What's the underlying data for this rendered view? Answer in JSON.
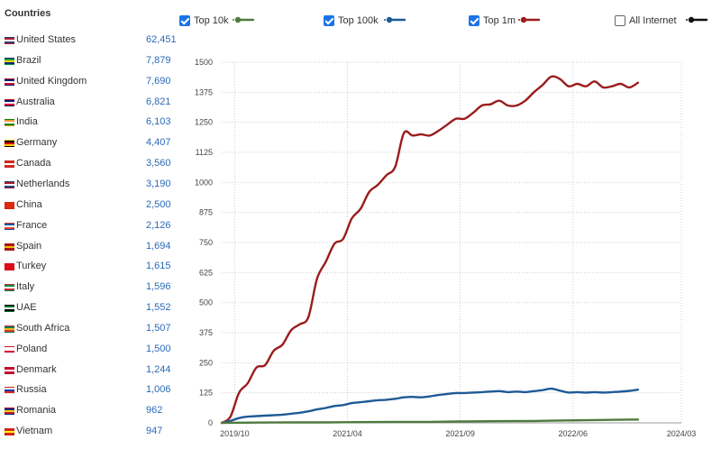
{
  "countries": {
    "heading": "Countries",
    "items": [
      {
        "name": "United States",
        "value": "62,451",
        "flag": "us-flag-icon",
        "colors": [
          "#b22234",
          "#ffffff",
          "#3c3b6e"
        ]
      },
      {
        "name": "Brazil",
        "value": "7,879",
        "flag": "brazil-flag-icon",
        "colors": [
          "#009c3b",
          "#ffdf00",
          "#002776"
        ]
      },
      {
        "name": "United Kingdom",
        "value": "7,690",
        "flag": "uk-flag-icon",
        "colors": [
          "#012169",
          "#ffffff",
          "#c8102e"
        ]
      },
      {
        "name": "Australia",
        "value": "6,821",
        "flag": "australia-flag-icon",
        "colors": [
          "#012169",
          "#ffffff",
          "#e4002b"
        ]
      },
      {
        "name": "India",
        "value": "6,103",
        "flag": "india-flag-icon",
        "colors": [
          "#ff9933",
          "#ffffff",
          "#138808"
        ]
      },
      {
        "name": "Germany",
        "value": "4,407",
        "flag": "germany-flag-icon",
        "colors": [
          "#000000",
          "#dd0000",
          "#ffce00"
        ]
      },
      {
        "name": "Canada",
        "value": "3,560",
        "flag": "canada-flag-icon",
        "colors": [
          "#d52b1e",
          "#ffffff",
          "#d52b1e"
        ]
      },
      {
        "name": "Netherlands",
        "value": "3,190",
        "flag": "netherlands-flag-icon",
        "colors": [
          "#ae1c28",
          "#ffffff",
          "#21468b"
        ]
      },
      {
        "name": "China",
        "value": "2,500",
        "flag": "china-flag-icon",
        "colors": [
          "#de2910",
          "#de2910",
          "#de2910"
        ]
      },
      {
        "name": "France",
        "value": "2,126",
        "flag": "france-flag-icon",
        "colors": [
          "#0055a4",
          "#ffffff",
          "#ef4135"
        ]
      },
      {
        "name": "Spain",
        "value": "1,694",
        "flag": "spain-flag-icon",
        "colors": [
          "#aa151b",
          "#f1bf00",
          "#aa151b"
        ]
      },
      {
        "name": "Turkey",
        "value": "1,615",
        "flag": "turkey-flag-icon",
        "colors": [
          "#e30a17",
          "#e30a17",
          "#e30a17"
        ]
      },
      {
        "name": "Italy",
        "value": "1,596",
        "flag": "italy-flag-icon",
        "colors": [
          "#009246",
          "#ffffff",
          "#ce2b37"
        ]
      },
      {
        "name": "UAE",
        "value": "1,552",
        "flag": "uae-flag-icon",
        "colors": [
          "#00732f",
          "#ffffff",
          "#000000"
        ]
      },
      {
        "name": "South Africa",
        "value": "1,507",
        "flag": "south-africa-flag-icon",
        "colors": [
          "#007a4d",
          "#ffb612",
          "#de3831"
        ]
      },
      {
        "name": "Poland",
        "value": "1,500",
        "flag": "poland-flag-icon",
        "colors": [
          "#ffffff",
          "#ffffff",
          "#dc143c"
        ]
      },
      {
        "name": "Denmark",
        "value": "1,244",
        "flag": "denmark-flag-icon",
        "colors": [
          "#c8102e",
          "#ffffff",
          "#c8102e"
        ]
      },
      {
        "name": "Russia",
        "value": "1,006",
        "flag": "russia-flag-icon",
        "colors": [
          "#ffffff",
          "#0039a6",
          "#d52b1e"
        ]
      },
      {
        "name": "Romania",
        "value": "962",
        "flag": "romania-flag-icon",
        "colors": [
          "#002b7f",
          "#fcd116",
          "#ce1126"
        ]
      },
      {
        "name": "Vietnam",
        "value": "947",
        "flag": "vietnam-flag-icon",
        "colors": [
          "#da251d",
          "#ffff00",
          "#da251d"
        ]
      }
    ]
  },
  "legend": [
    {
      "label": "Top 10k",
      "checked": true,
      "color": "#4e7a3e"
    },
    {
      "label": "Top 100k",
      "checked": true,
      "color": "#1f5a96"
    },
    {
      "label": "Top 1m",
      "checked": true,
      "color": "#9b1c1c"
    },
    {
      "label": "All Internet",
      "checked": false,
      "color": "#111111"
    }
  ],
  "chart_data": {
    "type": "line",
    "title": "",
    "xlabel": "",
    "ylabel": "",
    "ylim": [
      0,
      1500
    ],
    "xlim": [
      0,
      53
    ],
    "y_ticks": [
      0,
      125,
      250,
      375,
      500,
      625,
      750,
      875,
      1000,
      1125,
      1250,
      1375,
      1500
    ],
    "x_ticks": [
      {
        "label": "2019/10",
        "x": 1.5
      },
      {
        "label": "2021/04",
        "x": 14.5
      },
      {
        "label": "2021/09",
        "x": 27.5
      },
      {
        "label": "2022/06",
        "x": 40.5
      },
      {
        "label": "2024/03",
        "x": 53
      }
    ],
    "grid": true,
    "series": [
      {
        "name": "Top 1m",
        "color": "#9b1c1c",
        "points": [
          [
            0,
            0
          ],
          [
            1,
            25
          ],
          [
            2,
            125
          ],
          [
            3,
            165
          ],
          [
            4,
            230
          ],
          [
            5,
            240
          ],
          [
            6,
            300
          ],
          [
            7,
            325
          ],
          [
            8,
            385
          ],
          [
            9,
            410
          ],
          [
            10,
            440
          ],
          [
            11,
            600
          ],
          [
            12,
            670
          ],
          [
            13,
            745
          ],
          [
            14,
            765
          ],
          [
            15,
            850
          ],
          [
            16,
            890
          ],
          [
            17,
            960
          ],
          [
            18,
            990
          ],
          [
            19,
            1030
          ],
          [
            20,
            1065
          ],
          [
            21,
            1205
          ],
          [
            22,
            1195
          ],
          [
            23,
            1200
          ],
          [
            24,
            1195
          ],
          [
            25,
            1215
          ],
          [
            26,
            1240
          ],
          [
            27,
            1265
          ],
          [
            28,
            1265
          ],
          [
            29,
            1290
          ],
          [
            30,
            1320
          ],
          [
            31,
            1325
          ],
          [
            32,
            1340
          ],
          [
            33,
            1320
          ],
          [
            34,
            1320
          ],
          [
            35,
            1340
          ],
          [
            36,
            1375
          ],
          [
            37,
            1405
          ],
          [
            38,
            1440
          ],
          [
            39,
            1430
          ],
          [
            40,
            1400
          ],
          [
            41,
            1410
          ],
          [
            42,
            1400
          ],
          [
            43,
            1420
          ],
          [
            44,
            1395
          ],
          [
            45,
            1400
          ],
          [
            46,
            1410
          ],
          [
            47,
            1395
          ],
          [
            48,
            1415
          ]
        ]
      },
      {
        "name": "Top 100k",
        "color": "#1f5a96",
        "points": [
          [
            0,
            0
          ],
          [
            1,
            8
          ],
          [
            2,
            20
          ],
          [
            3,
            26
          ],
          [
            4,
            28
          ],
          [
            5,
            30
          ],
          [
            6,
            32
          ],
          [
            7,
            34
          ],
          [
            8,
            38
          ],
          [
            9,
            42
          ],
          [
            10,
            48
          ],
          [
            11,
            56
          ],
          [
            12,
            62
          ],
          [
            13,
            70
          ],
          [
            14,
            74
          ],
          [
            15,
            82
          ],
          [
            16,
            86
          ],
          [
            17,
            90
          ],
          [
            18,
            94
          ],
          [
            19,
            96
          ],
          [
            20,
            100
          ],
          [
            21,
            106
          ],
          [
            22,
            108
          ],
          [
            23,
            106
          ],
          [
            24,
            110
          ],
          [
            25,
            116
          ],
          [
            26,
            120
          ],
          [
            27,
            124
          ],
          [
            28,
            124
          ],
          [
            29,
            126
          ],
          [
            30,
            128
          ],
          [
            31,
            130
          ],
          [
            32,
            132
          ],
          [
            33,
            128
          ],
          [
            34,
            130
          ],
          [
            35,
            128
          ],
          [
            36,
            132
          ],
          [
            37,
            136
          ],
          [
            38,
            142
          ],
          [
            39,
            134
          ],
          [
            40,
            126
          ],
          [
            41,
            128
          ],
          [
            42,
            126
          ],
          [
            43,
            128
          ],
          [
            44,
            126
          ],
          [
            45,
            128
          ],
          [
            46,
            130
          ],
          [
            47,
            133
          ],
          [
            48,
            138
          ]
        ]
      },
      {
        "name": "Top 10k",
        "color": "#4e7a3e",
        "points": [
          [
            0,
            0
          ],
          [
            4,
            1
          ],
          [
            8,
            2
          ],
          [
            12,
            2
          ],
          [
            16,
            3
          ],
          [
            20,
            4
          ],
          [
            24,
            4
          ],
          [
            28,
            6
          ],
          [
            32,
            7
          ],
          [
            36,
            8
          ],
          [
            40,
            10
          ],
          [
            44,
            12
          ],
          [
            48,
            14
          ]
        ]
      }
    ]
  }
}
